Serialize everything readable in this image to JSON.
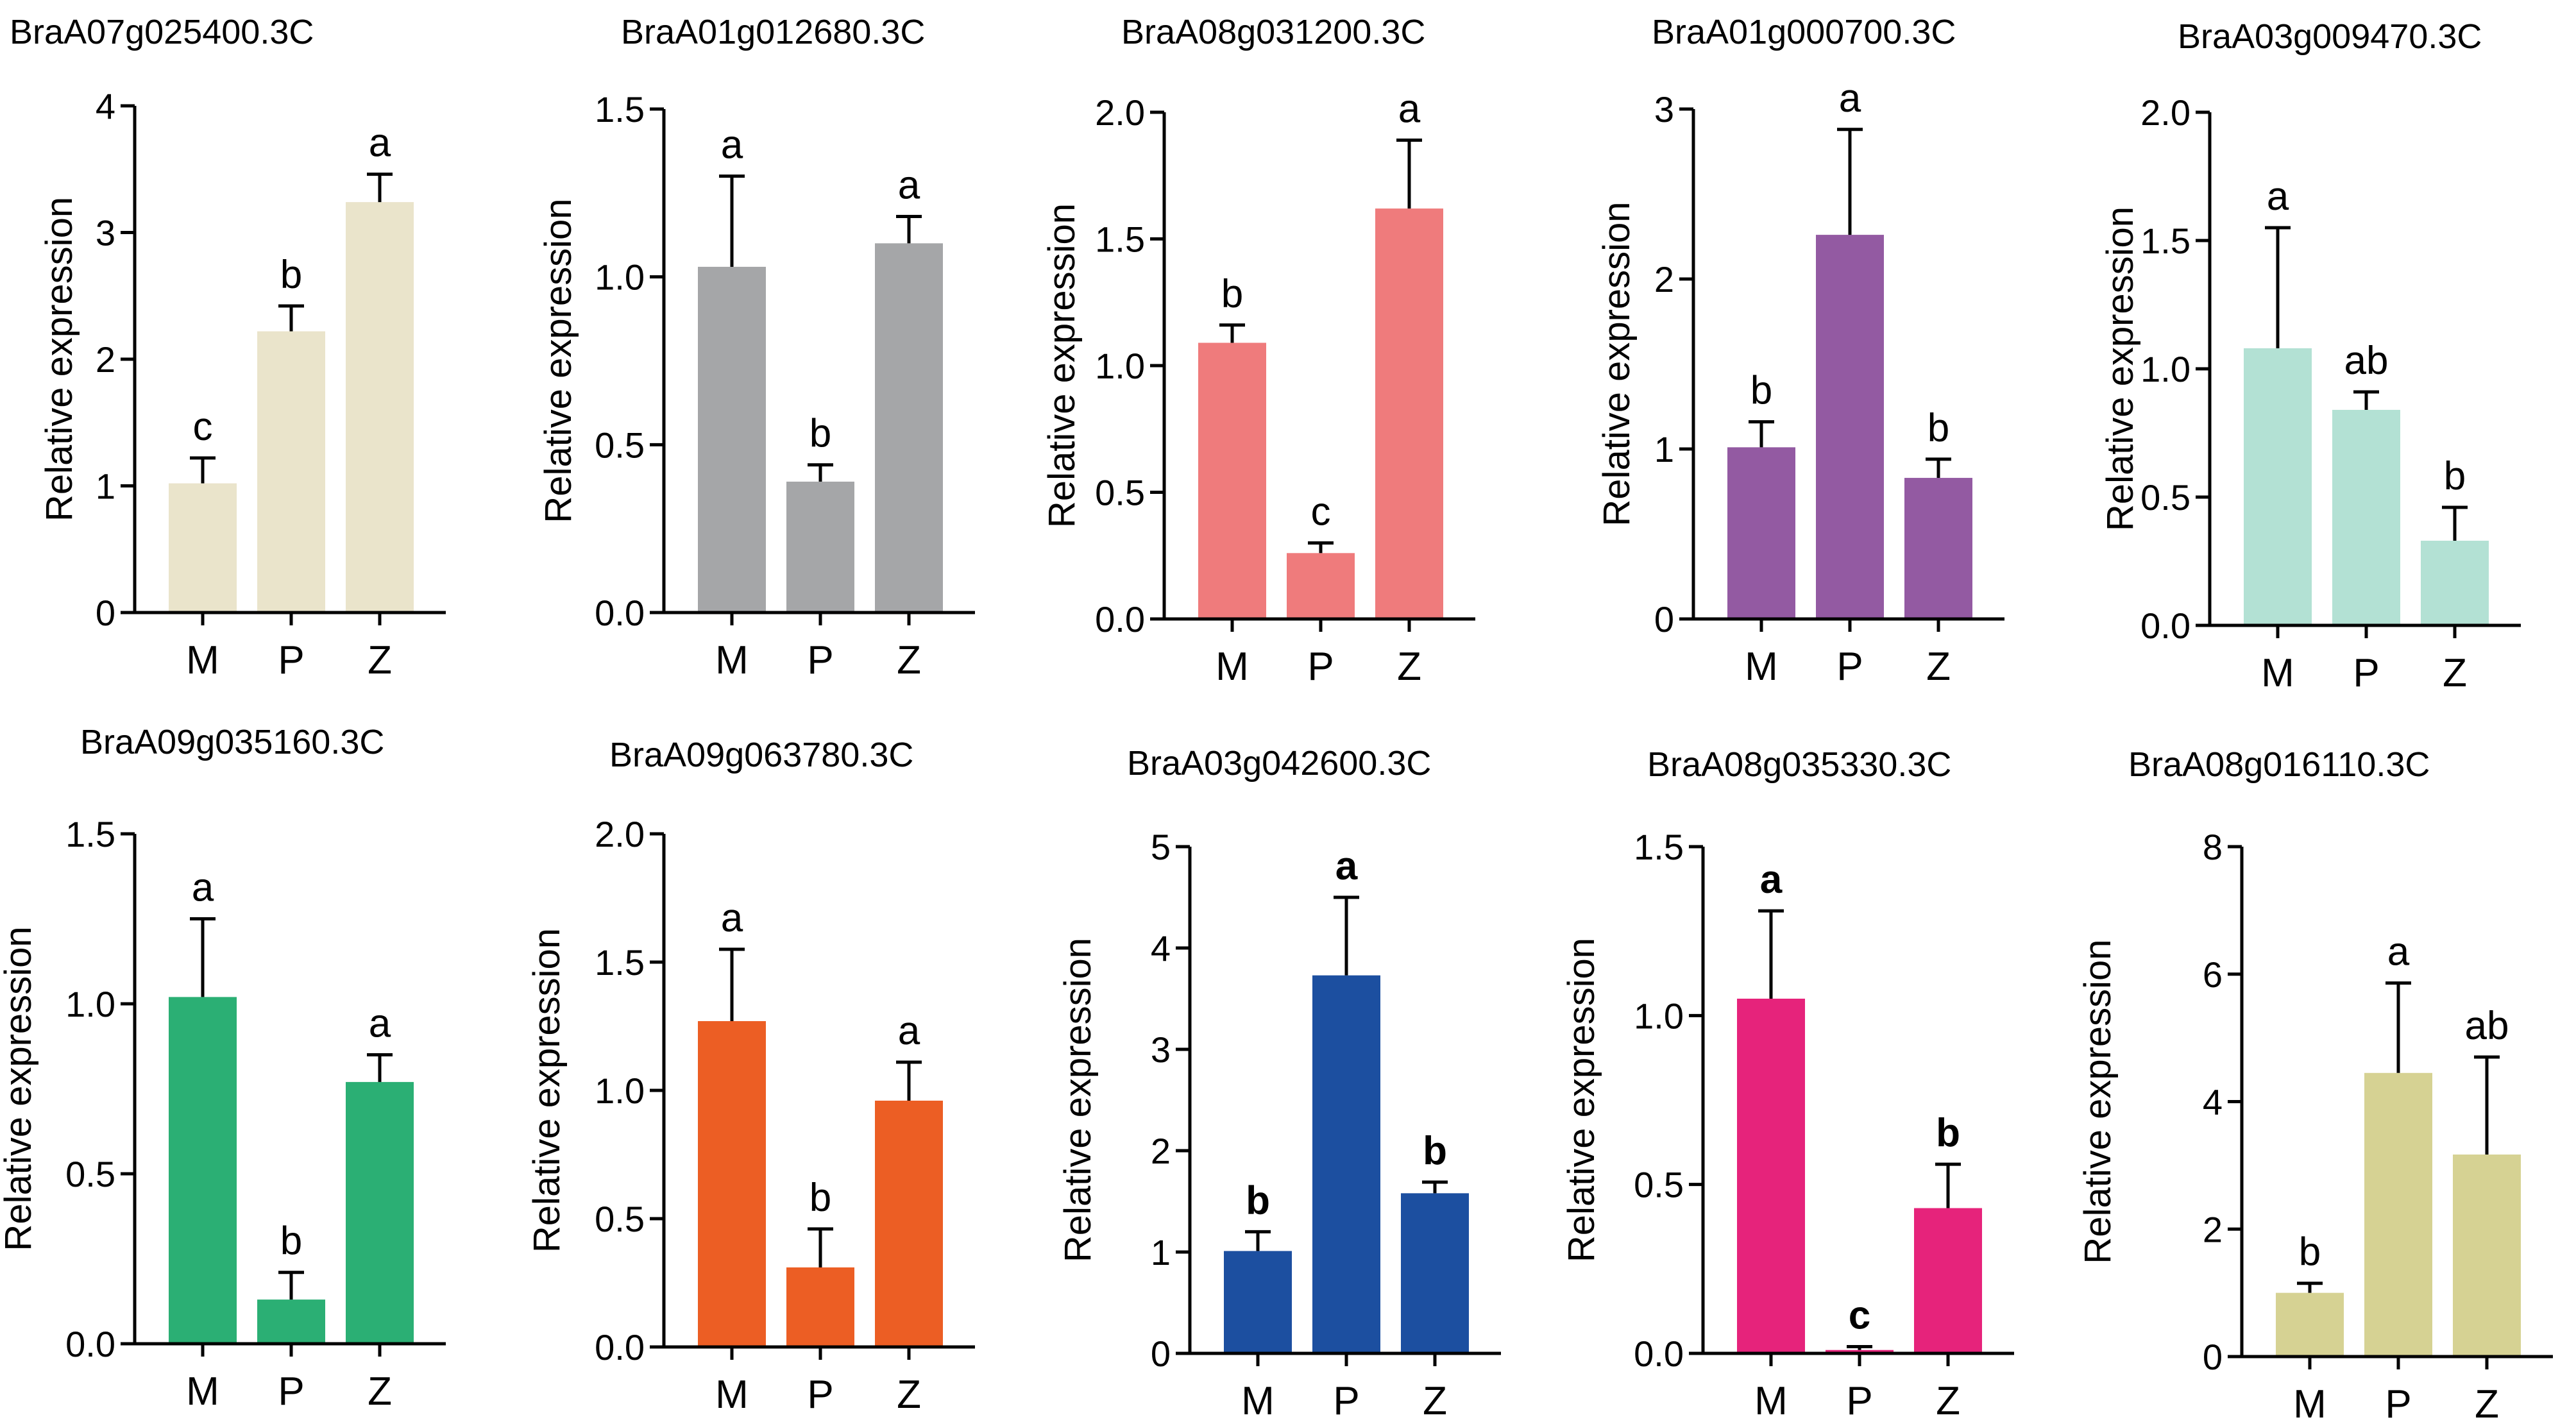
{
  "figure": {
    "panel_count": 10
  },
  "chart_data": [
    {
      "type": "bar",
      "title": "BraA07g025400.3C",
      "ylabel": "Relative expression",
      "xlabel": "",
      "categories": [
        "M",
        "P",
        "Z"
      ],
      "values": [
        1.02,
        2.22,
        3.24
      ],
      "errors": [
        0.2,
        0.2,
        0.22
      ],
      "significance": [
        "c",
        "b",
        "a"
      ],
      "sig_bold": false,
      "ylim": [
        0,
        4
      ],
      "yticks": [
        0,
        1,
        2,
        3,
        4
      ],
      "ytick_labels": [
        "0",
        "1",
        "2",
        "3",
        "4"
      ],
      "color": "#EAE4CB"
    },
    {
      "type": "bar",
      "title": "BraA01g012680.3C",
      "ylabel": "Relative expression",
      "xlabel": "",
      "categories": [
        "M",
        "P",
        "Z"
      ],
      "values": [
        1.03,
        0.39,
        1.1
      ],
      "errors": [
        0.27,
        0.05,
        0.08
      ],
      "significance": [
        "a",
        "b",
        "a"
      ],
      "sig_bold": false,
      "ylim": [
        0,
        1.5
      ],
      "yticks": [
        0,
        0.5,
        1.0,
        1.5
      ],
      "ytick_labels": [
        "0.0",
        "0.5",
        "1.0",
        "1.5"
      ],
      "color": "#A5A6A8"
    },
    {
      "type": "bar",
      "title": "BraA08g031200.3C",
      "ylabel": "Relative expression",
      "xlabel": "",
      "categories": [
        "M",
        "P",
        "Z"
      ],
      "values": [
        1.09,
        0.26,
        1.62
      ],
      "errors": [
        0.07,
        0.04,
        0.27
      ],
      "significance": [
        "b",
        "c",
        "a"
      ],
      "sig_bold": false,
      "ylim": [
        0,
        2.0
      ],
      "yticks": [
        0,
        0.5,
        1.0,
        1.5,
        2.0
      ],
      "ytick_labels": [
        "0.0",
        "0.5",
        "1.0",
        "1.5",
        "2.0"
      ],
      "color": "#EF7B7C"
    },
    {
      "type": "bar",
      "title": "BraA01g000700.3C",
      "ylabel": "Relative expression",
      "xlabel": "",
      "categories": [
        "M",
        "P",
        "Z"
      ],
      "values": [
        1.01,
        2.26,
        0.83
      ],
      "errors": [
        0.15,
        0.62,
        0.11
      ],
      "significance": [
        "b",
        "a",
        "b"
      ],
      "sig_bold": false,
      "ylim": [
        0,
        3
      ],
      "yticks": [
        0,
        1,
        2,
        3
      ],
      "ytick_labels": [
        "0",
        "1",
        "2",
        "3"
      ],
      "color": "#935AA2"
    },
    {
      "type": "bar",
      "title": "BraA03g009470.3C",
      "ylabel": "Relative expression",
      "xlabel": "",
      "categories": [
        "M",
        "P",
        "Z"
      ],
      "values": [
        1.08,
        0.84,
        0.33
      ],
      "errors": [
        0.47,
        0.07,
        0.13
      ],
      "significance": [
        "a",
        "ab",
        "b"
      ],
      "sig_bold": false,
      "ylim": [
        0,
        2.0
      ],
      "yticks": [
        0,
        0.5,
        1.0,
        1.5,
        2.0
      ],
      "ytick_labels": [
        "0.0",
        "0.5",
        "1.0",
        "1.5",
        "2.0"
      ],
      "color": "#B3E1D4"
    },
    {
      "type": "bar",
      "title": "BraA09g035160.3C",
      "ylabel": "Relative expression",
      "xlabel": "",
      "categories": [
        "M",
        "P",
        "Z"
      ],
      "values": [
        1.02,
        0.13,
        0.77
      ],
      "errors": [
        0.23,
        0.08,
        0.08
      ],
      "significance": [
        "a",
        "b",
        "a"
      ],
      "sig_bold": false,
      "ylim": [
        0,
        1.5
      ],
      "yticks": [
        0,
        0.5,
        1.0,
        1.5
      ],
      "ytick_labels": [
        "0.0",
        "0.5",
        "1.0",
        "1.5"
      ],
      "color": "#2BAF74"
    },
    {
      "type": "bar",
      "title": "BraA09g063780.3C",
      "ylabel": "Relative expression",
      "xlabel": "",
      "categories": [
        "M",
        "P",
        "Z"
      ],
      "values": [
        1.27,
        0.31,
        0.96
      ],
      "errors": [
        0.28,
        0.15,
        0.15
      ],
      "significance": [
        "a",
        "b",
        "a"
      ],
      "sig_bold": false,
      "ylim": [
        0,
        2.0
      ],
      "yticks": [
        0,
        0.5,
        1.0,
        1.5,
        2.0
      ],
      "ytick_labels": [
        "0.0",
        "0.5",
        "1.0",
        "1.5",
        "2.0"
      ],
      "color": "#EC5E24"
    },
    {
      "type": "bar",
      "title": "BraA03g042600.3C",
      "ylabel": "Relative expression",
      "xlabel": "",
      "categories": [
        "M",
        "P",
        "Z"
      ],
      "values": [
        1.01,
        3.73,
        1.58
      ],
      "errors": [
        0.19,
        0.77,
        0.11
      ],
      "significance": [
        "b",
        "a",
        "b"
      ],
      "sig_bold": true,
      "ylim": [
        0,
        5
      ],
      "yticks": [
        0,
        1,
        2,
        3,
        4,
        5
      ],
      "ytick_labels": [
        "0",
        "1",
        "2",
        "3",
        "4",
        "5"
      ],
      "color": "#1C4FA0"
    },
    {
      "type": "bar",
      "title": "BraA08g035330.3C",
      "ylabel": "Relative expression",
      "xlabel": "",
      "categories": [
        "M",
        "P",
        "Z"
      ],
      "values": [
        1.05,
        0.01,
        0.43
      ],
      "errors": [
        0.26,
        0.01,
        0.13
      ],
      "significance": [
        "a",
        "c",
        "b"
      ],
      "sig_bold": true,
      "ylim": [
        0,
        1.5
      ],
      "yticks": [
        0,
        0.5,
        1.0,
        1.5
      ],
      "ytick_labels": [
        "0.0",
        "0.5",
        "1.0",
        "1.5"
      ],
      "color": "#E6237B"
    },
    {
      "type": "bar",
      "title": "BraA08g016110.3C",
      "ylabel": "Relative expression",
      "xlabel": "",
      "categories": [
        "M",
        "P",
        "Z"
      ],
      "values": [
        1.0,
        4.45,
        3.17
      ],
      "errors": [
        0.15,
        1.41,
        1.53
      ],
      "significance": [
        "b",
        "a",
        "ab"
      ],
      "sig_bold": false,
      "ylim": [
        0,
        8
      ],
      "yticks": [
        0,
        2,
        4,
        6,
        8
      ],
      "ytick_labels": [
        "0",
        "2",
        "4",
        "6",
        "8"
      ],
      "color": "#D6D293"
    }
  ]
}
